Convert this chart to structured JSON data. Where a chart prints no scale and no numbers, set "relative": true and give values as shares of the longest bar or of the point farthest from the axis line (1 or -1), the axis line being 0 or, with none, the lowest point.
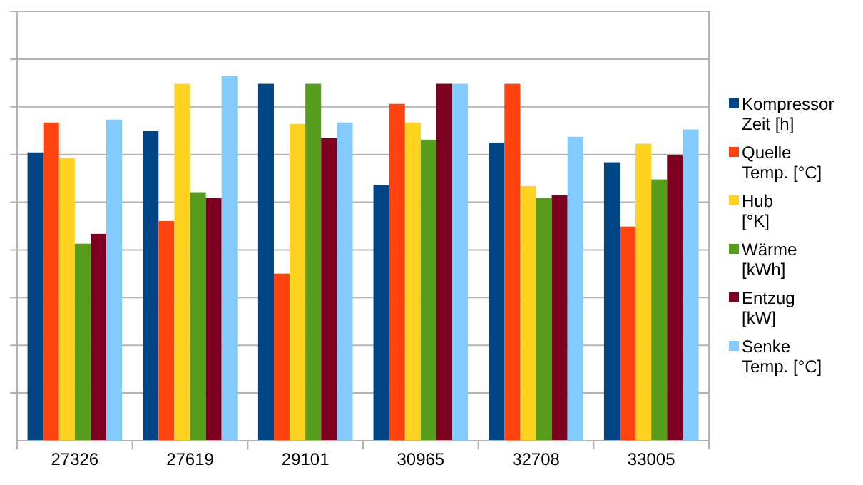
{
  "chart_data": {
    "type": "bar",
    "relative": true,
    "grid": "y",
    "legend": "right",
    "categories": [
      "27326",
      "27619",
      "29101",
      "30965",
      "32708",
      "33005"
    ],
    "series": [
      {
        "name": "Kompressor Zeit [h]",
        "color": "#004586",
        "values": [
          0.79,
          0.849,
          0.978,
          0.7,
          0.817,
          0.763
        ]
      },
      {
        "name": "Quelle Temp. [°C]",
        "color": "#ff420e",
        "values": [
          0.872,
          0.602,
          0.458,
          0.923,
          0.978,
          0.587
        ]
      },
      {
        "name": "Hub [°K]",
        "color": "#ffd320",
        "values": [
          0.774,
          0.978,
          0.868,
          0.872,
          0.698,
          0.814
        ]
      },
      {
        "name": "Wärme [kWh]",
        "color": "#579d1c",
        "values": [
          0.54,
          0.681,
          0.978,
          0.825,
          0.665,
          0.716
        ]
      },
      {
        "name": "Entzug [kW]",
        "color": "#7e0021",
        "values": [
          0.567,
          0.665,
          0.829,
          0.978,
          0.673,
          0.782
        ]
      },
      {
        "name": "Senke Temp. [°C]",
        "color": "#83caff",
        "values": [
          0.88,
          1,
          0.872,
          0.978,
          0.833,
          0.853
        ]
      }
    ]
  }
}
